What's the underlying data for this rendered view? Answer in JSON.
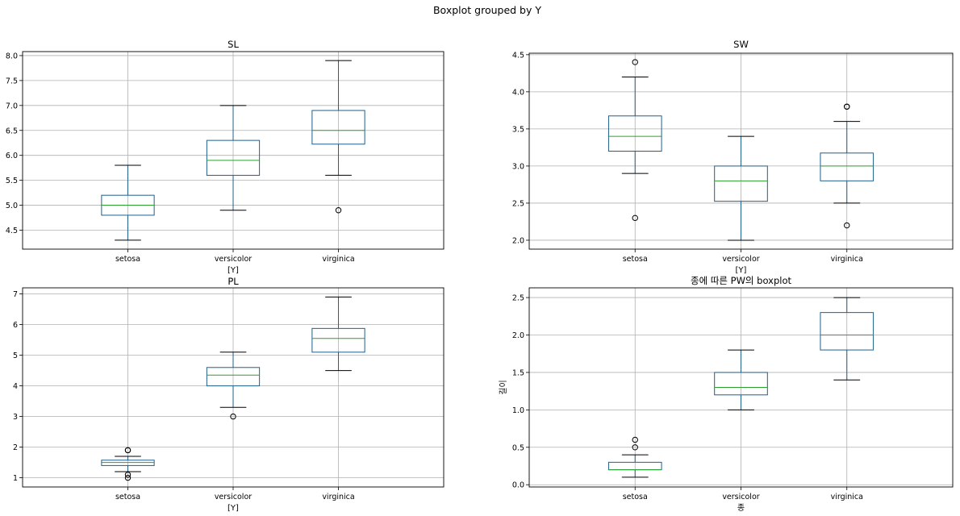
{
  "suptitle": "Boxplot grouped by Y",
  "chart_data": [
    {
      "type": "boxplot",
      "title": "SL",
      "xlabel": "[Y]",
      "ylabel": "",
      "categories": [
        "setosa",
        "versicolor",
        "virginica"
      ],
      "yticks": [
        "4.5",
        "5.0",
        "5.5",
        "6.0",
        "6.5",
        "7.0",
        "7.5",
        "8.0"
      ],
      "ylim": [
        4.12,
        8.08
      ],
      "grid": true,
      "boxes": [
        {
          "whisker_low": 4.3,
          "q1": 4.8,
          "median": 5.0,
          "q3": 5.2,
          "whisker_high": 5.8,
          "outliers": []
        },
        {
          "whisker_low": 4.9,
          "q1": 5.6,
          "median": 5.9,
          "q3": 6.3,
          "whisker_high": 7.0,
          "outliers": []
        },
        {
          "whisker_low": 5.6,
          "q1": 6.225,
          "median": 6.5,
          "q3": 6.9,
          "whisker_high": 7.9,
          "outliers": [
            4.9
          ]
        }
      ]
    },
    {
      "type": "boxplot",
      "title": "SW",
      "xlabel": "[Y]",
      "ylabel": "",
      "categories": [
        "setosa",
        "versicolor",
        "virginica"
      ],
      "yticks": [
        "2.0",
        "2.5",
        "3.0",
        "3.5",
        "4.0",
        "4.5"
      ],
      "ylim": [
        1.88,
        4.52
      ],
      "grid": true,
      "boxes": [
        {
          "whisker_low": 2.9,
          "q1": 3.2,
          "median": 3.4,
          "q3": 3.675,
          "whisker_high": 4.2,
          "outliers": [
            4.4,
            2.3
          ]
        },
        {
          "whisker_low": 2.0,
          "q1": 2.525,
          "median": 2.8,
          "q3": 3.0,
          "whisker_high": 3.4,
          "outliers": []
        },
        {
          "whisker_low": 2.5,
          "q1": 2.8,
          "median": 3.0,
          "q3": 3.175,
          "whisker_high": 3.6,
          "outliers": [
            3.8,
            3.8,
            2.2
          ]
        }
      ]
    },
    {
      "type": "boxplot",
      "title": "PL",
      "xlabel": "[Y]",
      "ylabel": "",
      "categories": [
        "setosa",
        "versicolor",
        "virginica"
      ],
      "yticks": [
        "1",
        "2",
        "3",
        "4",
        "5",
        "6",
        "7"
      ],
      "ylim": [
        0.7,
        7.2
      ],
      "grid": true,
      "boxes": [
        {
          "whisker_low": 1.2,
          "q1": 1.4,
          "median": 1.5,
          "q3": 1.575,
          "whisker_high": 1.7,
          "outliers": [
            1.9,
            1.9,
            1.1,
            1.0
          ]
        },
        {
          "whisker_low": 3.3,
          "q1": 4.0,
          "median": 4.35,
          "q3": 4.6,
          "whisker_high": 5.1,
          "outliers": [
            3.0
          ]
        },
        {
          "whisker_low": 4.5,
          "q1": 5.1,
          "median": 5.55,
          "q3": 5.875,
          "whisker_high": 6.9,
          "outliers": []
        }
      ]
    },
    {
      "type": "boxplot",
      "title": "종에 따른 PW의 boxplot",
      "xlabel": "종",
      "ylabel": "길이",
      "categories": [
        "setosa",
        "versicolor",
        "virginica"
      ],
      "yticks": [
        "0.0",
        "0.5",
        "1.0",
        "1.5",
        "2.0",
        "2.5"
      ],
      "ylim": [
        -0.03,
        2.63
      ],
      "grid": true,
      "boxes": [
        {
          "whisker_low": 0.1,
          "q1": 0.2,
          "median": 0.2,
          "q3": 0.3,
          "whisker_high": 0.4,
          "outliers": [
            0.5,
            0.6
          ]
        },
        {
          "whisker_low": 1.0,
          "q1": 1.2,
          "median": 1.3,
          "q3": 1.5,
          "whisker_high": 1.8,
          "outliers": []
        },
        {
          "whisker_low": 1.4,
          "q1": 1.8,
          "median": 2.0,
          "q3": 2.3,
          "whisker_high": 2.5,
          "outliers": []
        }
      ]
    }
  ],
  "colors": {
    "box": "#1f5f8b",
    "median": "#2ca02c",
    "whisker_cap": "#000000",
    "grid": "#b0b0b0",
    "outlier_edge": "#000000"
  }
}
